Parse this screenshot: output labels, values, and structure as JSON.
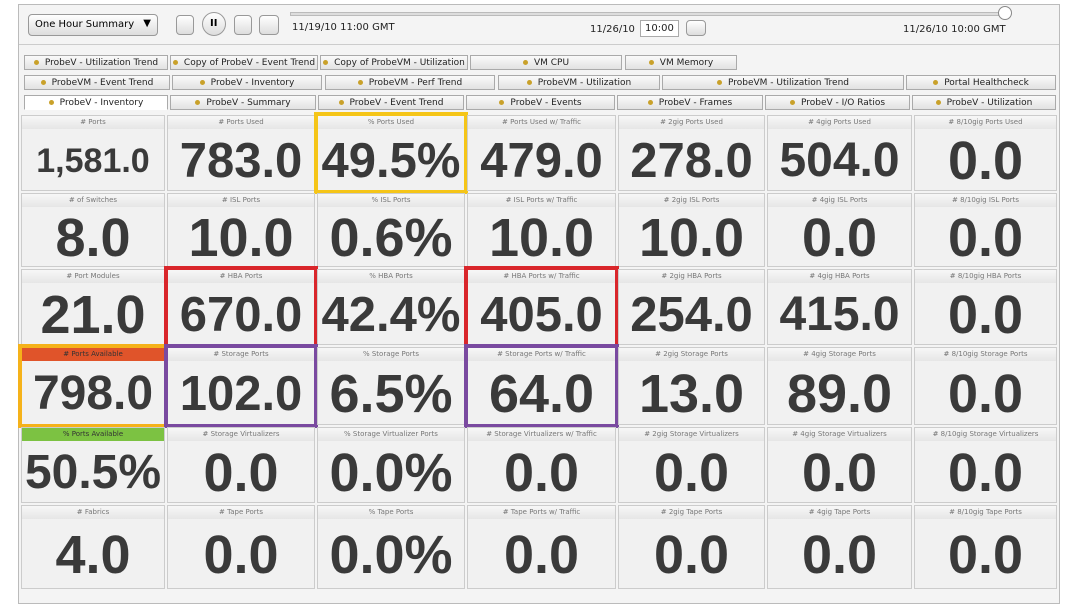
{
  "toolbar": {
    "view": "One Hour Summary",
    "start": "11/19/10 11:00 GMT",
    "date": "11/26/10",
    "time": "10:00",
    "end": "11/26/10 10:00 GMT"
  },
  "tabs": [
    [
      "ProbeV - Utilization Trend",
      "Copy of ProbeV - Event Trend",
      "Copy of ProbeVM - Utilization",
      "VM CPU",
      "VM Memory"
    ],
    [
      "ProbeVM - Event Trend",
      "ProbeV - Inventory",
      "ProbeVM - Perf Trend",
      "ProbeVM - Utilization",
      "ProbeVM - Utilization Trend",
      "Portal Healthcheck"
    ],
    [
      "ProbeV - Inventory",
      "ProbeV - Summary",
      "ProbeV - Event Trend",
      "ProbeV - Events",
      "ProbeV - Frames",
      "ProbeV - I/O Ratios",
      "ProbeV - Utilization"
    ]
  ],
  "grid": [
    [
      {
        "label": "# Ports",
        "value": "1,581.0"
      },
      {
        "label": "# Ports Used",
        "value": "783.0"
      },
      {
        "label": "% Ports Used",
        "value": "49.5%",
        "highlight": "#f5c518"
      },
      {
        "label": "# Ports Used w/ Traffic",
        "value": "479.0"
      },
      {
        "label": "# 2gig Ports Used",
        "value": "278.0"
      },
      {
        "label": "# 4gig Ports Used",
        "value": "504.0"
      },
      {
        "label": "# 8/10gig Ports Used",
        "value": "0.0"
      }
    ],
    [
      {
        "label": "# of Switches",
        "value": "8.0"
      },
      {
        "label": "# ISL Ports",
        "value": "10.0"
      },
      {
        "label": "% ISL Ports",
        "value": "0.6%"
      },
      {
        "label": "# ISL Ports w/ Traffic",
        "value": "10.0"
      },
      {
        "label": "# 2gig ISL Ports",
        "value": "10.0"
      },
      {
        "label": "# 4gig ISL Ports",
        "value": "0.0"
      },
      {
        "label": "# 8/10gig ISL Ports",
        "value": "0.0"
      }
    ],
    [
      {
        "label": "# Port Modules",
        "value": "21.0"
      },
      {
        "label": "# HBA Ports",
        "value": "670.0",
        "highlight": "#d9262b"
      },
      {
        "label": "% HBA Ports",
        "value": "42.4%"
      },
      {
        "label": "# HBA Ports w/ Traffic",
        "value": "405.0",
        "highlight": "#d9262b"
      },
      {
        "label": "# 2gig HBA Ports",
        "value": "254.0"
      },
      {
        "label": "# 4gig HBA Ports",
        "value": "415.0"
      },
      {
        "label": "# 8/10gig HBA Ports",
        "value": "0.0"
      }
    ],
    [
      {
        "label": "# Ports Available",
        "value": "798.0",
        "highlight": "#f5b21a",
        "header_color": "#e0542a"
      },
      {
        "label": "# Storage Ports",
        "value": "102.0",
        "highlight": "#7a4aa0"
      },
      {
        "label": "% Storage Ports",
        "value": "6.5%"
      },
      {
        "label": "# Storage Ports w/ Traffic",
        "value": "64.0",
        "highlight": "#7a4aa0"
      },
      {
        "label": "# 2gig Storage Ports",
        "value": "13.0"
      },
      {
        "label": "# 4gig Storage Ports",
        "value": "89.0"
      },
      {
        "label": "# 8/10gig Storage Ports",
        "value": "0.0"
      }
    ],
    [
      {
        "label": "% Ports Available",
        "value": "50.5%",
        "header_color": "#7cc242"
      },
      {
        "label": "# Storage Virtualizers",
        "value": "0.0"
      },
      {
        "label": "% Storage Virtualizer Ports",
        "value": "0.0%"
      },
      {
        "label": "# Storage Virtualizers w/ Traffic",
        "value": "0.0"
      },
      {
        "label": "# 2gig Storage Virtualizers",
        "value": "0.0"
      },
      {
        "label": "# 4gig Storage Virtualizers",
        "value": "0.0"
      },
      {
        "label": "# 8/10gig Storage Virtualizers",
        "value": "0.0"
      }
    ],
    [
      {
        "label": "# Fabrics",
        "value": "4.0"
      },
      {
        "label": "# Tape Ports",
        "value": "0.0"
      },
      {
        "label": "% Tape Ports",
        "value": "0.0%"
      },
      {
        "label": "# Tape Ports w/ Traffic",
        "value": "0.0"
      },
      {
        "label": "# 2gig Tape Ports",
        "value": "0.0"
      },
      {
        "label": "# 4gig Tape Ports",
        "value": "0.0"
      },
      {
        "label": "# 8/10gig Tape Ports",
        "value": "0.0"
      }
    ]
  ]
}
